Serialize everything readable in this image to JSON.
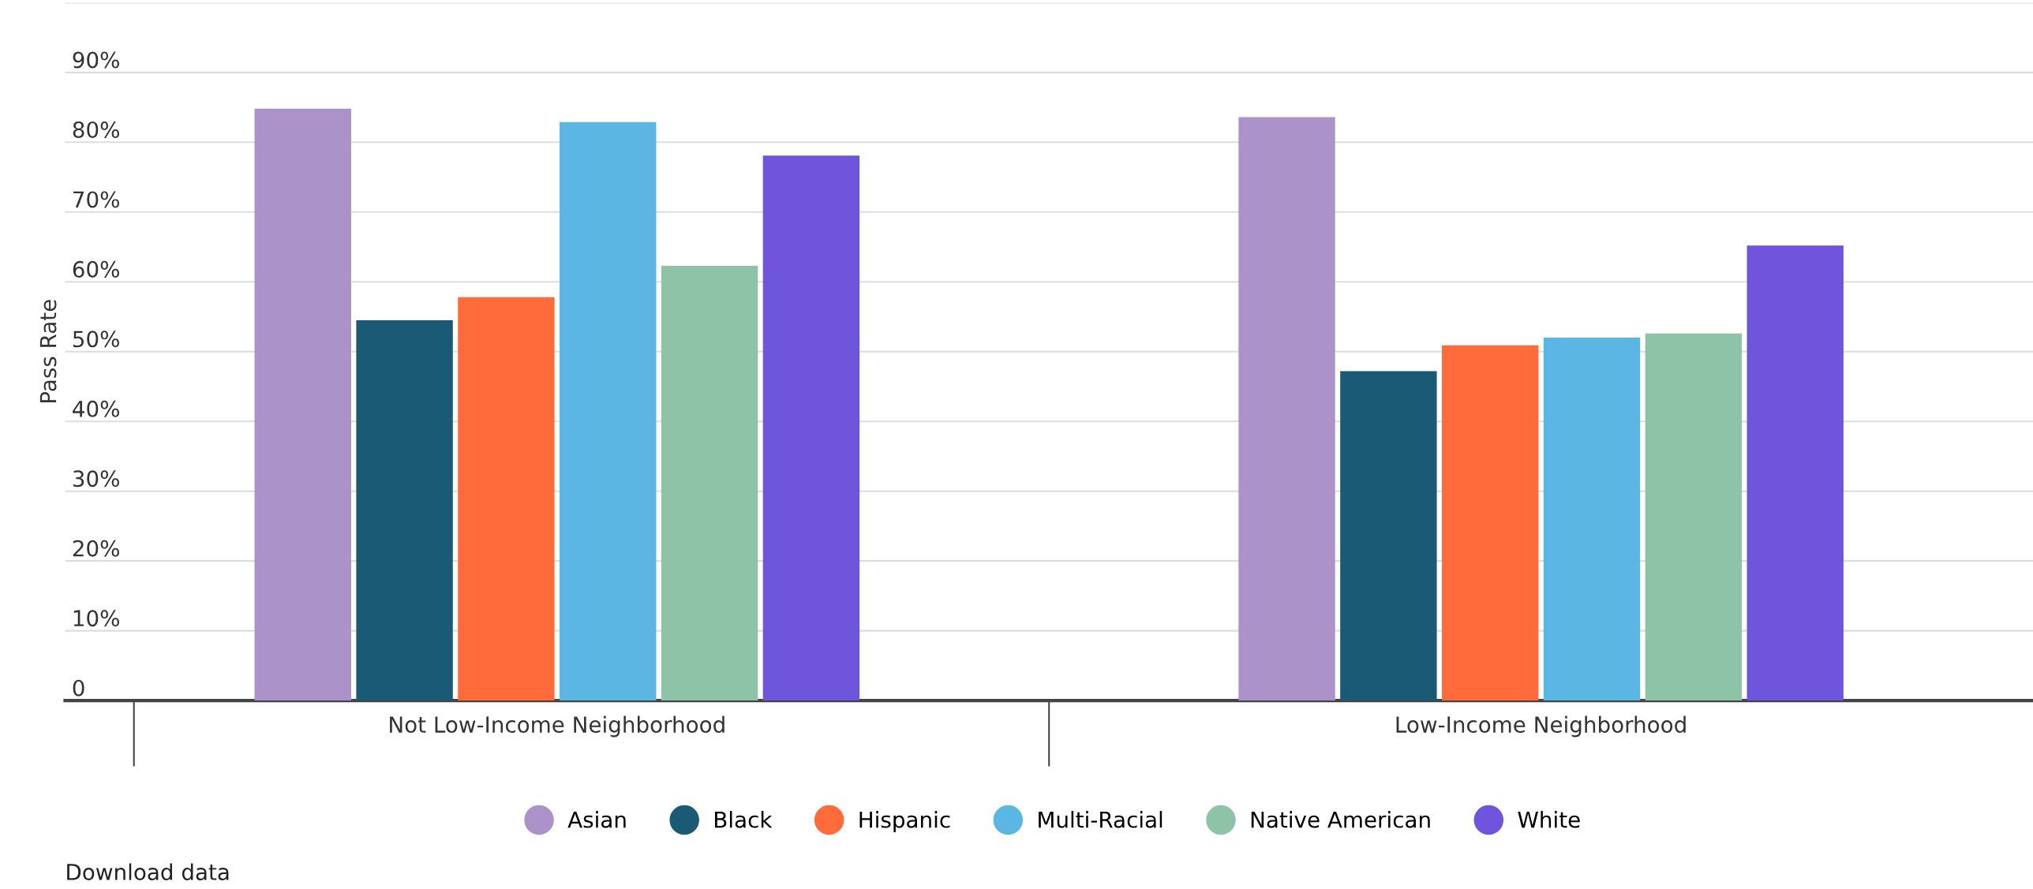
{
  "chart_data": {
    "type": "bar",
    "ylabel": "Pass Rate",
    "categories": [
      "Not Low-Income Neighborhood",
      "Low-Income Neighborhood"
    ],
    "series": [
      {
        "name": "Asian",
        "color": "#ab92c8",
        "values": [
          84.8,
          83.6
        ]
      },
      {
        "name": "Black",
        "color": "#1b5a75",
        "values": [
          54.5,
          47.2
        ]
      },
      {
        "name": "Hispanic",
        "color": "#ff6b3b",
        "values": [
          57.8,
          50.9
        ]
      },
      {
        "name": "Multi-Racial",
        "color": "#5cb6e4",
        "values": [
          82.9,
          52.0
        ]
      },
      {
        "name": "Native American",
        "color": "#8ec3a7",
        "values": [
          62.3,
          52.6
        ]
      },
      {
        "name": "White",
        "color": "#6f55db",
        "values": [
          78.1,
          65.2
        ]
      }
    ],
    "ylim": [
      0,
      100
    ],
    "yticks": [
      0,
      {
        "value": 10,
        "label": "10%"
      },
      {
        "value": 20,
        "label": "20%"
      },
      {
        "value": 30,
        "label": "30%"
      },
      {
        "value": 40,
        "label": "40%"
      },
      {
        "value": 50,
        "label": "50%"
      },
      {
        "value": 60,
        "label": "60%"
      },
      {
        "value": 70,
        "label": "70%"
      },
      {
        "value": 80,
        "label": "80%"
      },
      {
        "value": 90,
        "label": "90%"
      },
      {
        "value": 100,
        "label": null
      }
    ],
    "grid": "y",
    "legend": "bottom",
    "marker": "circle",
    "annotations": [
      "Download data"
    ]
  }
}
